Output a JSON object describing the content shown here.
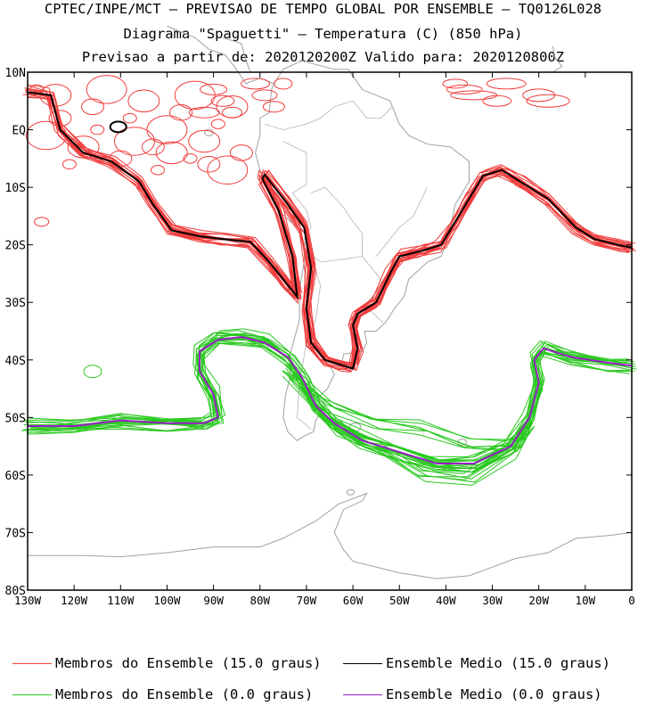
{
  "header": {
    "line1": "CPTEC/INPE/MCT – PREVISAO DE TEMPO GLOBAL POR ENSEMBLE – TQ0126L028",
    "line2": "Diagrama \"Spaguetti\" – Temperatura (C) (850 hPa)",
    "line3": "Previsao a partir de: 2020120200Z  Valido para: 2020120800Z"
  },
  "map": {
    "lon_range": [
      -130,
      0
    ],
    "lat_range": [
      -80,
      10
    ],
    "lat_ticks": [
      "10N",
      "EQ",
      "10S",
      "20S",
      "30S",
      "40S",
      "50S",
      "60S",
      "70S",
      "80S"
    ],
    "lon_ticks": [
      "130W",
      "120W",
      "110W",
      "100W",
      "90W",
      "80W",
      "70W",
      "60W",
      "50W",
      "40W",
      "30W",
      "20W",
      "10W",
      "0"
    ],
    "colors": {
      "members_15": "#f03c3c",
      "mean_15": "#000000",
      "members_0": "#28c81e",
      "mean_0": "#9b1ec8",
      "land": "#a0a0a0"
    }
  },
  "legend": {
    "items": [
      {
        "label": "Membros do Ensemble (15.0 graus)",
        "color": "#f03c3c"
      },
      {
        "label": "Ensemble Medio (15.0 graus)",
        "color": "#000000"
      },
      {
        "label": "Membros do Ensemble (0.0 graus)",
        "color": "#28c81e"
      },
      {
        "label": "Ensemble Medio (0.0 graus)",
        "color": "#9b1ec8"
      }
    ]
  }
}
